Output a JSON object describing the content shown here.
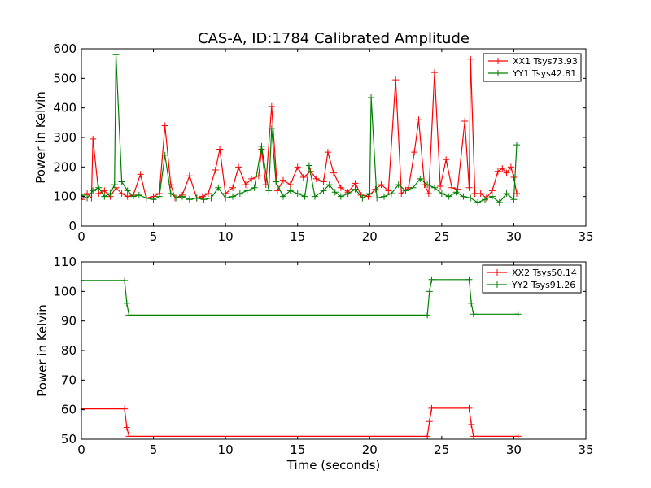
{
  "chart_data": [
    {
      "type": "line",
      "title": "CAS-A, ID:1784 Calibrated Amplitude",
      "xlabel": "",
      "ylabel": "Power in Kelvin",
      "xlim": [
        0,
        35
      ],
      "ylim": [
        0,
        600
      ],
      "xticks": [
        0,
        5,
        10,
        15,
        20,
        25,
        30,
        35
      ],
      "yticks": [
        0,
        100,
        200,
        300,
        400,
        500,
        600
      ],
      "legend_position": "top-right",
      "series": [
        {
          "name": "XX1 Tsys73.93",
          "color": "#ff0000",
          "x": [
            0.0,
            0.4,
            0.7,
            0.8,
            1.2,
            1.6,
            2.0,
            2.4,
            2.8,
            3.2,
            3.6,
            4.1,
            4.5,
            5.0,
            5.4,
            5.8,
            6.2,
            6.5,
            7.0,
            7.5,
            8.0,
            8.4,
            8.8,
            9.3,
            9.6,
            10.0,
            10.5,
            10.9,
            11.4,
            11.8,
            12.3,
            12.5,
            12.8,
            13.2,
            13.6,
            14.0,
            14.5,
            15.0,
            15.4,
            15.9,
            16.3,
            16.8,
            17.1,
            17.5,
            18.0,
            18.5,
            19.0,
            19.4,
            19.9,
            20.4,
            20.8,
            21.3,
            21.8,
            22.2,
            22.7,
            23.1,
            23.4,
            23.8,
            24.1,
            24.5,
            24.9,
            25.3,
            25.7,
            26.1,
            26.6,
            26.9,
            27.0,
            27.3,
            27.7,
            28.1,
            28.5,
            28.9,
            29.2,
            29.5,
            29.8,
            30.0,
            30.2
          ],
          "y": [
            90,
            110,
            95,
            295,
            110,
            120,
            100,
            130,
            110,
            100,
            105,
            175,
            95,
            100,
            110,
            340,
            140,
            95,
            105,
            170,
            95,
            100,
            110,
            190,
            260,
            110,
            130,
            200,
            140,
            160,
            170,
            260,
            140,
            405,
            120,
            155,
            140,
            200,
            165,
            185,
            160,
            150,
            250,
            180,
            130,
            115,
            145,
            105,
            100,
            125,
            140,
            120,
            495,
            110,
            130,
            250,
            360,
            140,
            110,
            520,
            135,
            225,
            130,
            125,
            355,
            130,
            565,
            110,
            110,
            95,
            120,
            185,
            195,
            180,
            200,
            165,
            110
          ]
        },
        {
          "name": "YY1 Tsys42.81",
          "color": "#008000",
          "x": [
            0.0,
            0.4,
            0.8,
            1.2,
            1.6,
            2.0,
            2.3,
            2.4,
            2.8,
            3.2,
            3.6,
            4.0,
            4.5,
            5.0,
            5.4,
            5.8,
            6.2,
            6.6,
            7.0,
            7.5,
            8.0,
            8.5,
            9.0,
            9.5,
            10.0,
            10.5,
            11.0,
            11.5,
            12.0,
            12.5,
            13.0,
            13.2,
            13.5,
            14.0,
            14.5,
            15.0,
            15.5,
            15.8,
            16.2,
            16.8,
            17.2,
            17.6,
            18.0,
            18.5,
            19.0,
            19.5,
            20.0,
            20.1,
            20.5,
            21.0,
            21.5,
            22.0,
            22.5,
            23.0,
            23.5,
            24.0,
            24.5,
            25.0,
            25.5,
            26.0,
            26.5,
            27.0,
            27.5,
            28.0,
            28.5,
            29.0,
            29.5,
            30.0,
            30.2
          ],
          "y": [
            105,
            95,
            120,
            130,
            100,
            110,
            140,
            580,
            150,
            120,
            100,
            105,
            95,
            90,
            100,
            240,
            110,
            95,
            100,
            90,
            95,
            90,
            95,
            130,
            95,
            100,
            110,
            120,
            130,
            270,
            120,
            330,
            150,
            100,
            120,
            110,
            100,
            205,
            100,
            120,
            140,
            115,
            100,
            110,
            125,
            95,
            110,
            435,
            95,
            100,
            110,
            140,
            120,
            130,
            160,
            140,
            130,
            110,
            100,
            115,
            100,
            95,
            80,
            90,
            100,
            80,
            110,
            90,
            275
          ]
        }
      ]
    },
    {
      "type": "line",
      "title": "",
      "xlabel": "Time (seconds)",
      "ylabel": "Power in Kelvin",
      "xlim": [
        0,
        35
      ],
      "ylim": [
        50,
        110
      ],
      "xticks": [
        0,
        5,
        10,
        15,
        20,
        25,
        30,
        35
      ],
      "yticks": [
        50,
        60,
        70,
        80,
        90,
        100,
        110
      ],
      "legend_position": "top-right",
      "series": [
        {
          "name": "XX2 Tsys50.14",
          "color": "#ff0000",
          "x": [
            0.0,
            3.0,
            3.15,
            3.3,
            24.0,
            24.15,
            24.3,
            26.9,
            27.05,
            27.2,
            30.3
          ],
          "y": [
            60.3,
            60.3,
            54.0,
            51.0,
            51.0,
            56.0,
            60.5,
            60.5,
            55.0,
            51.0,
            51.0
          ]
        },
        {
          "name": "YY2 Tsys91.26",
          "color": "#008000",
          "x": [
            0.0,
            3.0,
            3.15,
            3.3,
            24.0,
            24.15,
            24.3,
            26.9,
            27.05,
            27.2,
            30.3
          ],
          "y": [
            103.7,
            103.7,
            96.0,
            92.0,
            92.0,
            100.0,
            104.0,
            104.0,
            96.0,
            92.3,
            92.3
          ]
        }
      ]
    }
  ]
}
